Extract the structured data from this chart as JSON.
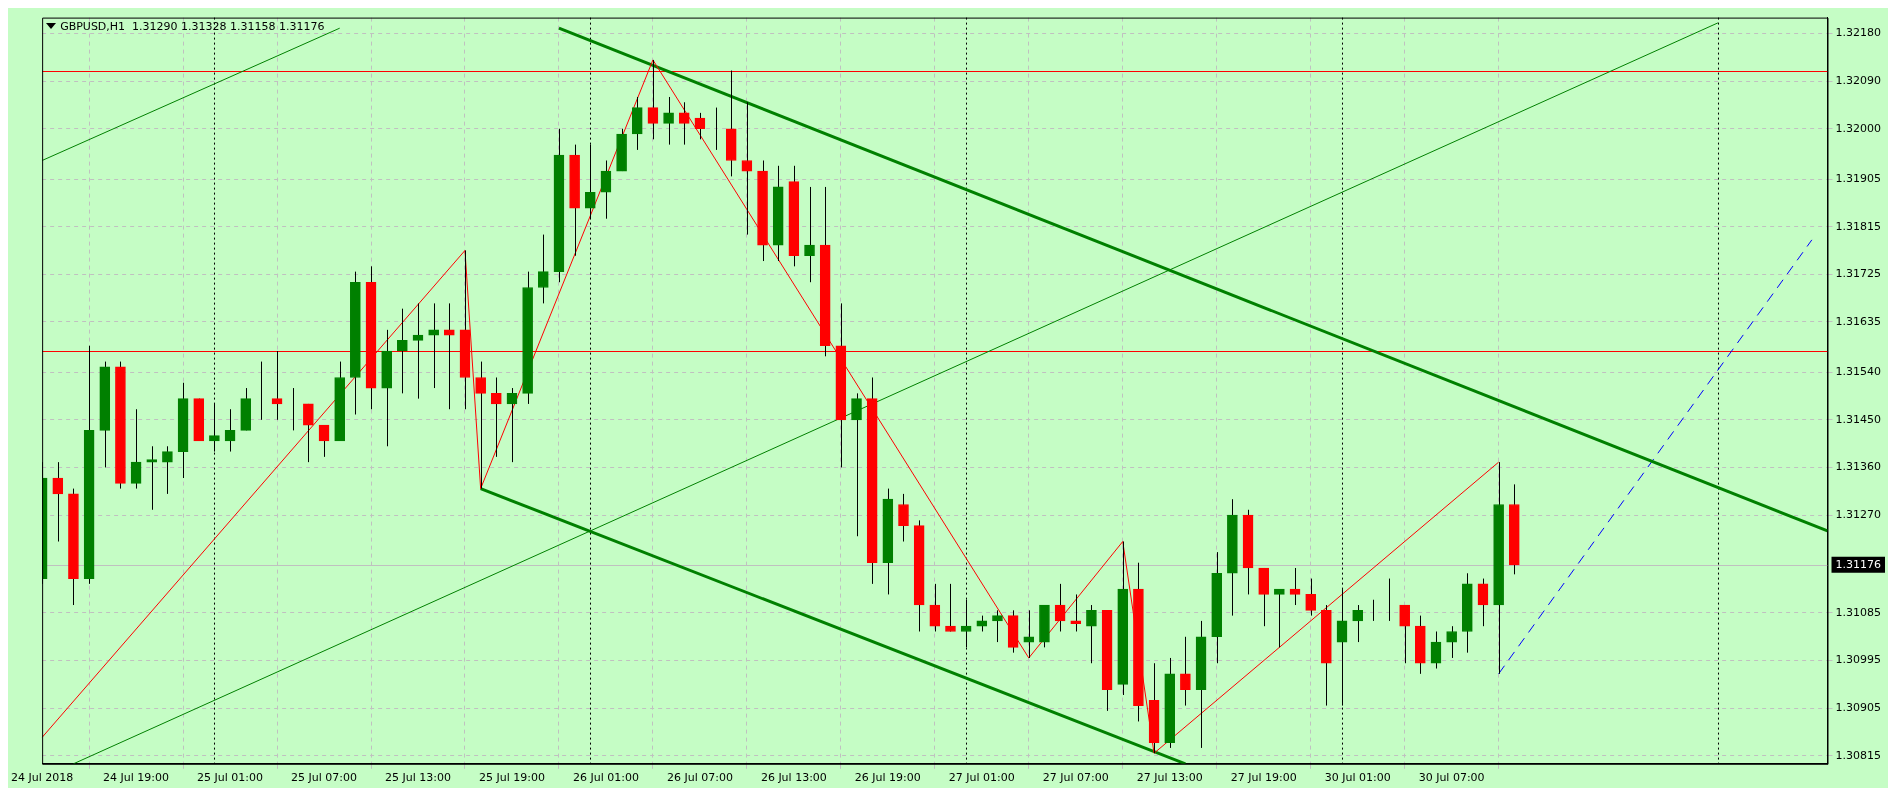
{
  "chart_data": {
    "type": "candlestick",
    "title": "GBPUSD,H1  1.31290 1.31328 1.31158 1.31176",
    "categories": [
      "24 Jul 2018",
      null,
      null,
      null,
      null,
      null,
      "24 Jul 19:00",
      null,
      null,
      null,
      null,
      null,
      "25 Jul 01:00",
      null,
      null,
      null,
      null,
      null,
      "25 Jul 07:00",
      null,
      null,
      null,
      null,
      null,
      "25 Jul 13:00",
      null,
      null,
      null,
      null,
      null,
      "25 Jul 19:00",
      null,
      null,
      null,
      null,
      null,
      "26 Jul 01:00",
      null,
      null,
      null,
      null,
      null,
      "26 Jul 07:00",
      null,
      null,
      null,
      null,
      null,
      "26 Jul 13:00",
      null,
      null,
      null,
      null,
      null,
      "26 Jul 19:00",
      null,
      null,
      null,
      null,
      null,
      "27 Jul 01:00",
      null,
      null,
      null,
      null,
      null,
      "27 Jul 07:00",
      null,
      null,
      null,
      null,
      null,
      "27 Jul 13:00",
      null,
      null,
      null,
      null,
      null,
      "27 Jul 19:00",
      null,
      null,
      null,
      null,
      null,
      "30 Jul 01:00",
      null,
      null,
      null,
      null,
      null,
      "30 Jul 07:00",
      null,
      null,
      null,
      null,
      null,
      null,
      null,
      null,
      null,
      null,
      null,
      null,
      null,
      null,
      null,
      null,
      null,
      null,
      null,
      null,
      null,
      null,
      null,
      null
    ],
    "ohlc": [
      [
        1.3115,
        1.3137,
        1.3114,
        1.3134
      ],
      [
        1.3134,
        1.3137,
        1.3122,
        1.3131
      ],
      [
        1.3131,
        1.3132,
        1.311,
        1.3115
      ],
      [
        1.3115,
        1.3159,
        1.3114,
        1.3143
      ],
      [
        1.3143,
        1.3156,
        1.3136,
        1.3155
      ],
      [
        1.3155,
        1.3156,
        1.3132,
        1.3133
      ],
      [
        1.3133,
        1.3147,
        1.3132,
        1.3137
      ],
      [
        1.3137,
        1.314,
        1.3128,
        1.31375
      ],
      [
        1.3137,
        1.314,
        1.3131,
        1.3139
      ],
      [
        1.3139,
        1.3152,
        1.3134,
        1.3149
      ],
      [
        1.3149,
        1.3149,
        1.3141,
        1.3141
      ],
      [
        1.3141,
        1.3148,
        1.3139,
        1.3142
      ],
      [
        1.3141,
        1.3147,
        1.3139,
        1.3143
      ],
      [
        1.3143,
        1.3151,
        1.3143,
        1.3149
      ],
      [
        1.3149,
        1.3156,
        1.3145,
        1.3149
      ],
      [
        1.3149,
        1.3158,
        1.3145,
        1.3148
      ],
      [
        1.3148,
        1.3151,
        1.3143,
        1.3148
      ],
      [
        1.3148,
        1.3148,
        1.3137,
        1.3144
      ],
      [
        1.3144,
        1.3144,
        1.3138,
        1.3141
      ],
      [
        1.3141,
        1.3156,
        1.3141,
        1.3153
      ],
      [
        1.3153,
        1.3173,
        1.3146,
        1.3171
      ],
      [
        1.3171,
        1.3174,
        1.3147,
        1.3151
      ],
      [
        1.3151,
        1.3162,
        1.314,
        1.3158
      ],
      [
        1.3158,
        1.3166,
        1.315,
        1.316
      ],
      [
        1.316,
        1.3167,
        1.3149,
        1.3161
      ],
      [
        1.3161,
        1.3167,
        1.3151,
        1.3162
      ],
      [
        1.3162,
        1.3167,
        1.3147,
        1.3161
      ],
      [
        1.3162,
        1.3177,
        1.3147,
        1.3153
      ],
      [
        1.3153,
        1.3156,
        1.3132,
        1.315
      ],
      [
        1.315,
        1.3153,
        1.3138,
        1.3148
      ],
      [
        1.3148,
        1.3151,
        1.3137,
        1.315
      ],
      [
        1.315,
        1.3173,
        1.3148,
        1.317
      ],
      [
        1.317,
        1.318,
        1.3167,
        1.3173
      ],
      [
        1.3173,
        1.32,
        1.3171,
        1.3195
      ],
      [
        1.3195,
        1.3197,
        1.3176,
        1.3185
      ],
      [
        1.3185,
        1.3197,
        1.3183,
        1.3188
      ],
      [
        1.3188,
        1.3194,
        1.3183,
        1.3192
      ],
      [
        1.3192,
        1.32,
        1.3192,
        1.3199
      ],
      [
        1.3199,
        1.3206,
        1.3196,
        1.3204
      ],
      [
        1.3204,
        1.3213,
        1.3198,
        1.3201
      ],
      [
        1.3201,
        1.3206,
        1.3197,
        1.3203
      ],
      [
        1.3203,
        1.3205,
        1.3197,
        1.3201
      ],
      [
        1.3202,
        1.3203,
        1.3198,
        1.32
      ],
      [
        1.32,
        1.3204,
        1.3196,
        1.32
      ],
      [
        1.32,
        1.3211,
        1.3191,
        1.3194
      ],
      [
        1.3194,
        1.3205,
        1.318,
        1.3192
      ],
      [
        1.3192,
        1.3194,
        1.3175,
        1.3178
      ],
      [
        1.3178,
        1.3193,
        1.3175,
        1.3189
      ],
      [
        1.319,
        1.3193,
        1.3174,
        1.3176
      ],
      [
        1.3176,
        1.3189,
        1.3171,
        1.3178
      ],
      [
        1.3178,
        1.3189,
        1.3157,
        1.3159
      ],
      [
        1.3159,
        1.3167,
        1.3136,
        1.3145
      ],
      [
        1.3145,
        1.315,
        1.3123,
        1.3149
      ],
      [
        1.3149,
        1.3153,
        1.3114,
        1.3118
      ],
      [
        1.3118,
        1.3132,
        1.3112,
        1.313
      ],
      [
        1.3129,
        1.3131,
        1.3122,
        1.3125
      ],
      [
        1.3125,
        1.3126,
        1.3105,
        1.311
      ],
      [
        1.311,
        1.3114,
        1.3105,
        1.3106
      ],
      [
        1.3106,
        1.3114,
        1.3105,
        1.3105
      ],
      [
        1.3105,
        1.3111,
        1.3102,
        1.3106
      ],
      [
        1.3106,
        1.3108,
        1.3105,
        1.3107
      ],
      [
        1.3107,
        1.3109,
        1.3103,
        1.3108
      ],
      [
        1.3108,
        1.3109,
        1.3101,
        1.3102
      ],
      [
        1.3103,
        1.3109,
        1.31,
        1.3104
      ],
      [
        1.3103,
        1.311,
        1.3102,
        1.311
      ],
      [
        1.311,
        1.3114,
        1.3105,
        1.3107
      ],
      [
        1.3107,
        1.3112,
        1.3105,
        1.31065
      ],
      [
        1.3106,
        1.311,
        1.3099,
        1.3109
      ],
      [
        1.3109,
        1.3109,
        1.309,
        1.3094
      ],
      [
        1.3095,
        1.3122,
        1.3093,
        1.3113
      ],
      [
        1.3113,
        1.3118,
        1.3088,
        1.3091
      ],
      [
        1.3092,
        1.3099,
        1.3082,
        1.3084
      ],
      [
        1.3084,
        1.31,
        1.3083,
        1.3097
      ],
      [
        1.3097,
        1.3104,
        1.3091,
        1.3094
      ],
      [
        1.3094,
        1.3107,
        1.3083,
        1.3104
      ],
      [
        1.3104,
        1.312,
        1.3099,
        1.3116
      ],
      [
        1.3116,
        1.313,
        1.3108,
        1.3127
      ],
      [
        1.3127,
        1.3128,
        1.3112,
        1.3117
      ],
      [
        1.3117,
        1.3117,
        1.3106,
        1.3112
      ],
      [
        1.3112,
        1.3113,
        1.3102,
        1.3113
      ],
      [
        1.3113,
        1.3117,
        1.311,
        1.3112
      ],
      [
        1.3112,
        1.3115,
        1.3108,
        1.3109
      ],
      [
        1.3109,
        1.311,
        1.3091,
        1.3099
      ],
      [
        1.3103,
        1.3113,
        1.3091,
        1.3107
      ],
      [
        1.3107,
        1.311,
        1.3103,
        1.3109
      ],
      [
        1.3109,
        1.3111,
        1.3107,
        1.3109
      ],
      [
        1.3109,
        1.3115,
        1.3107,
        1.3109
      ],
      [
        1.311,
        1.311,
        1.3099,
        1.3106
      ],
      [
        1.3106,
        1.3108,
        1.3097,
        1.3099
      ],
      [
        1.3099,
        1.3105,
        1.3098,
        1.3103
      ],
      [
        1.3103,
        1.3106,
        1.31,
        1.3105
      ],
      [
        1.3105,
        1.3116,
        1.3101,
        1.3114
      ],
      [
        1.3114,
        1.3115,
        1.3106,
        1.311
      ],
      [
        1.311,
        1.3137,
        1.3097,
        1.3129
      ],
      [
        1.3129,
        1.31328,
        1.31158,
        1.31176
      ],
      null,
      null,
      null,
      null,
      null,
      null,
      null,
      null,
      null,
      null,
      null,
      null,
      null,
      null,
      null,
      null,
      null,
      null,
      null,
      null
    ],
    "colors": [
      "#008000",
      "#ff0000",
      "#ff0000",
      "#008000",
      "#008000",
      "#ff0000",
      "#008000",
      "#008000",
      "#008000",
      "#008000",
      "#ff0000",
      "#008000",
      "#008000",
      "#008000",
      "#008000",
      "#ff0000",
      "#008000",
      "#ff0000",
      "#ff0000",
      "#008000",
      "#008000",
      "#ff0000",
      "#008000",
      "#008000",
      "#008000",
      "#008000",
      "#ff0000",
      "#ff0000",
      "#ff0000",
      "#ff0000",
      "#008000",
      "#008000",
      "#008000",
      "#008000",
      "#ff0000",
      "#008000",
      "#008000",
      "#008000",
      "#008000",
      "#ff0000",
      "#008000",
      "#ff0000",
      "#ff0000",
      "#008000",
      "#ff0000",
      "#ff0000",
      "#ff0000",
      "#008000",
      "#ff0000",
      "#008000",
      "#ff0000",
      "#ff0000",
      "#008000",
      "#ff0000",
      "#008000",
      "#ff0000",
      "#ff0000",
      "#ff0000",
      "#ff0000",
      "#008000",
      "#008000",
      "#008000",
      "#ff0000",
      "#008000",
      "#008000",
      "#ff0000",
      "#ff0000",
      "#008000",
      "#ff0000",
      "#008000",
      "#ff0000",
      "#ff0000",
      "#008000",
      "#ff0000",
      "#008000",
      "#008000",
      "#008000",
      "#ff0000",
      "#ff0000",
      "#008000",
      "#ff0000",
      "#ff0000",
      "#ff0000",
      "#008000",
      "#008000",
      "#008000",
      "#008000",
      "#ff0000",
      "#ff0000",
      "#008000",
      "#008000",
      "#008000",
      "#ff0000",
      "#008000",
      "#ff0000",
      null,
      null,
      null,
      null,
      null,
      null,
      null,
      null,
      null,
      null,
      null,
      null,
      null,
      null,
      null,
      null,
      null,
      null,
      null,
      null
    ],
    "series": [
      {
        "type": "line",
        "color": "#ff0000",
        "line_style": "solid",
        "values": [
          1.3085,
          null,
          null,
          null,
          null,
          null,
          null,
          null,
          null,
          null,
          null,
          null,
          null,
          null,
          null,
          null,
          null,
          null,
          null,
          null,
          null,
          null,
          null,
          null,
          null,
          null,
          null,
          1.3177,
          1.3132,
          null,
          null,
          null,
          null,
          null,
          null,
          null,
          null,
          null,
          null,
          1.3213,
          null,
          null,
          null,
          null,
          null,
          null,
          null,
          null,
          null,
          null,
          null,
          null,
          null,
          null,
          null,
          null,
          null,
          null,
          null,
          null,
          null,
          null,
          null,
          1.31,
          null,
          null,
          null,
          null,
          null,
          1.3122,
          null,
          1.3082,
          null,
          null,
          null,
          null,
          null,
          null,
          null,
          null,
          null,
          null,
          null,
          null,
          null,
          null,
          null,
          null,
          null,
          null,
          null,
          null,
          null,
          1.3137,
          null,
          null,
          null,
          null,
          null,
          null,
          null,
          null,
          null,
          null,
          null,
          null,
          null,
          null,
          null,
          null,
          null,
          null,
          null,
          null,
          null
        ]
      },
      {
        "type": "line",
        "color": "#008000",
        "line_style": "solid",
        "values": [
          null,
          null,
          null,
          null,
          null,
          null,
          null,
          null,
          null,
          null,
          null,
          null,
          null,
          null,
          null,
          null,
          null,
          null,
          null,
          null,
          null,
          null,
          null,
          null,
          null,
          null,
          null,
          null,
          null,
          null,
          null,
          null,
          null,
          1.3219,
          null,
          null,
          null,
          null,
          null,
          null,
          null,
          null,
          null,
          null,
          null,
          null,
          null,
          null,
          null,
          null,
          null,
          null,
          null,
          null,
          null,
          null,
          null,
          null,
          null,
          null,
          null,
          null,
          null,
          null,
          null,
          null,
          null,
          null,
          null,
          null,
          null,
          null,
          null,
          null,
          null,
          null,
          null,
          null,
          null,
          null,
          null,
          null,
          null,
          null,
          null,
          null,
          null,
          null,
          null,
          null,
          null,
          null,
          null,
          null,
          null,
          null,
          null,
          null,
          null,
          null,
          null,
          null,
          null,
          null,
          null,
          null,
          null,
          null,
          null,
          null,
          null,
          null,
          null,
          null,
          1.3124
        ]
      },
      {
        "type": "line",
        "color": "#008000",
        "line_style": "solid",
        "values": [
          null,
          null,
          null,
          null,
          null,
          null,
          null,
          null,
          null,
          null,
          null,
          null,
          null,
          null,
          null,
          null,
          null,
          null,
          null,
          null,
          null,
          null,
          null,
          null,
          null,
          null,
          null,
          null,
          1.3132,
          null,
          null,
          null,
          null,
          null,
          null,
          null,
          null,
          null,
          null,
          null,
          null,
          null,
          null,
          null,
          null,
          null,
          null,
          null,
          null,
          null,
          null,
          null,
          null,
          null,
          null,
          null,
          null,
          null,
          null,
          null,
          null,
          null,
          null,
          null,
          null,
          null,
          null,
          null,
          null,
          null,
          null,
          null,
          null,
          1.308,
          null,
          null,
          null,
          null,
          null,
          null,
          null,
          null,
          null,
          null,
          null,
          null,
          null,
          null,
          null,
          null,
          null,
          null,
          null,
          null,
          null,
          null,
          null,
          null,
          null,
          null,
          null,
          null,
          null,
          null,
          null,
          null,
          null,
          null,
          null,
          null,
          null,
          null,
          null,
          null,
          null
        ]
      },
      {
        "type": "line",
        "color": "#008000",
        "line_style": "solid",
        "values": [
          1.3194,
          null,
          null,
          null,
          null,
          null,
          null,
          null,
          null,
          null,
          null,
          null,
          null,
          null,
          null,
          null,
          null,
          null,
          null,
          1.3219,
          null,
          null,
          null,
          null,
          null,
          null,
          null,
          null,
          null,
          null,
          null,
          null,
          null,
          null,
          null,
          null,
          null,
          null,
          null,
          null,
          null,
          null,
          null,
          null,
          null,
          null,
          null,
          null,
          null,
          null,
          null,
          null,
          null,
          null,
          null,
          null,
          null,
          null,
          null,
          null,
          null,
          null,
          null,
          null,
          null,
          null,
          null,
          null,
          null,
          null,
          null,
          null,
          null,
          null,
          null,
          null,
          null,
          null,
          null,
          null,
          null,
          null,
          null,
          null,
          null,
          null,
          null,
          null,
          null,
          null,
          null,
          null,
          null,
          null,
          null,
          null,
          null,
          null,
          null,
          null,
          null,
          null,
          null,
          null,
          null,
          null,
          null,
          null,
          null,
          null,
          null,
          null,
          null,
          null,
          null
        ]
      },
      {
        "type": "line",
        "color": "#008000",
        "line_style": "solid",
        "values": [
          null,
          null,
          1.308,
          null,
          null,
          null,
          null,
          null,
          null,
          null,
          null,
          null,
          null,
          null,
          null,
          null,
          null,
          null,
          null,
          null,
          null,
          null,
          null,
          null,
          null,
          null,
          null,
          null,
          null,
          null,
          null,
          null,
          null,
          null,
          null,
          null,
          null,
          null,
          null,
          null,
          null,
          null,
          null,
          null,
          null,
          null,
          null,
          null,
          null,
          null,
          null,
          null,
          null,
          null,
          null,
          null,
          null,
          null,
          null,
          null,
          null,
          null,
          null,
          null,
          null,
          null,
          null,
          null,
          null,
          null,
          null,
          null,
          null,
          null,
          null,
          null,
          null,
          null,
          null,
          null,
          null,
          null,
          null,
          null,
          null,
          null,
          null,
          null,
          null,
          null,
          null,
          null,
          null,
          null,
          null,
          null,
          null,
          null,
          null,
          null,
          null,
          null,
          null,
          null,
          null,
          null,
          null,
          1.322,
          null,
          null,
          null,
          null,
          null,
          null,
          null
        ]
      },
      {
        "type": "line",
        "color": "#0000ff",
        "line_style": "dashed",
        "values": [
          null,
          null,
          null,
          null,
          null,
          null,
          null,
          null,
          null,
          null,
          null,
          null,
          null,
          null,
          null,
          null,
          null,
          null,
          null,
          null,
          null,
          null,
          null,
          null,
          null,
          null,
          null,
          null,
          null,
          null,
          null,
          null,
          null,
          null,
          null,
          null,
          null,
          null,
          null,
          null,
          null,
          null,
          null,
          null,
          null,
          null,
          null,
          null,
          null,
          null,
          null,
          null,
          null,
          null,
          null,
          null,
          null,
          null,
          null,
          null,
          null,
          null,
          null,
          null,
          null,
          null,
          null,
          null,
          null,
          null,
          null,
          null,
          null,
          null,
          null,
          null,
          null,
          null,
          null,
          null,
          null,
          null,
          null,
          null,
          null,
          null,
          null,
          null,
          null,
          null,
          null,
          null,
          null,
          1.3097,
          null,
          null,
          null,
          null,
          null,
          null,
          null,
          null,
          null,
          null,
          null,
          null,
          null,
          null,
          null,
          null,
          null,
          null,
          null,
          1.3179,
          null
        ]
      }
    ],
    "ylim": [
      1.308,
      1.3221
    ],
    "yticks": [
      {
        "value": 1.30815,
        "label": "1.30815"
      },
      {
        "value": 1.30905,
        "label": "1.30905"
      },
      {
        "value": 1.30995,
        "label": "1.30995"
      },
      {
        "value": 1.31085,
        "label": "1.31085"
      },
      {
        "value": 1.3127,
        "label": "1.31270"
      },
      {
        "value": 1.3136,
        "label": "1.31360"
      },
      {
        "value": 1.3145,
        "label": "1.31450"
      },
      {
        "value": 1.3154,
        "label": "1.31540"
      },
      {
        "value": 1.31635,
        "label": "1.31635"
      },
      {
        "value": 1.31725,
        "label": "1.31725"
      },
      {
        "value": 1.31815,
        "label": "1.31815"
      },
      {
        "value": 1.31905,
        "label": "1.31905"
      },
      {
        "value": 1.32,
        "label": "1.32000"
      },
      {
        "value": 1.3209,
        "label": "1.32090"
      },
      {
        "value": 1.3218,
        "label": "1.32180"
      }
    ],
    "ref_lines": [
      {
        "axis": "y",
        "value": 1.3211,
        "color": "#ff0000",
        "line_style": "solid"
      },
      {
        "axis": "y",
        "value": 1.3158,
        "color": "#ff0000",
        "line_style": "solid"
      },
      {
        "axis": "y",
        "value": 1.31176,
        "label": "1.31176",
        "color": "#c0c0c0",
        "line_style": "solid"
      }
    ],
    "grid": true
  }
}
